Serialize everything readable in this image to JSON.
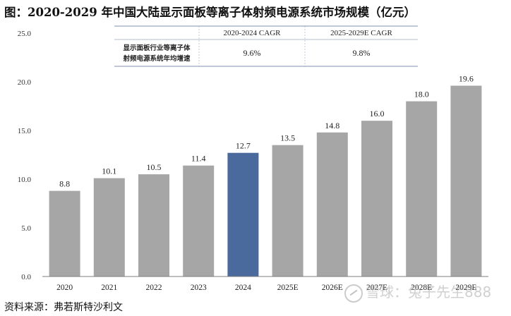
{
  "title": "图：2020-2029 年中国大陆显示面板等离子体射频电源系统市场规模（亿元）",
  "source": "资料来源：弗若斯特沙利文",
  "watermark": "雪球：兔子先生888",
  "colors": {
    "bar": "#a6a6a6",
    "highlight": "#4a6a9e",
    "axis": "#7f7f7f",
    "table_border": "#9aa7c0"
  },
  "cagr_table": {
    "headers": [
      "",
      "2020-2024 CAGR",
      "2025-2029E CAGR"
    ],
    "row_label_lines": [
      "显示面板行业等离子体",
      "射频电源系统年均增速"
    ],
    "values": [
      "9.6%",
      "9.8%"
    ]
  },
  "chart_data": {
    "type": "bar",
    "title": "",
    "xlabel": "",
    "ylabel": "",
    "categories": [
      "2020",
      "2021",
      "2022",
      "2023",
      "2024",
      "2025E",
      "2026E",
      "2027E",
      "2028E",
      "2029E"
    ],
    "values": [
      8.8,
      10.1,
      10.5,
      11.4,
      12.7,
      13.5,
      14.8,
      16.0,
      18.0,
      19.6
    ],
    "data_labels": [
      "8.8",
      "10.1",
      "10.5",
      "11.4",
      "12.7",
      "13.5",
      "14.8",
      "16.0",
      "18.0",
      "19.6"
    ],
    "highlight_category": "2024",
    "ylim": [
      0,
      25
    ],
    "yticks": [
      0,
      5,
      10,
      15,
      20,
      25
    ],
    "ytick_labels": [
      "0.0",
      "5.0",
      "10.0",
      "15.0",
      "20.0",
      "25.0"
    ],
    "grid": false,
    "legend": "none"
  }
}
